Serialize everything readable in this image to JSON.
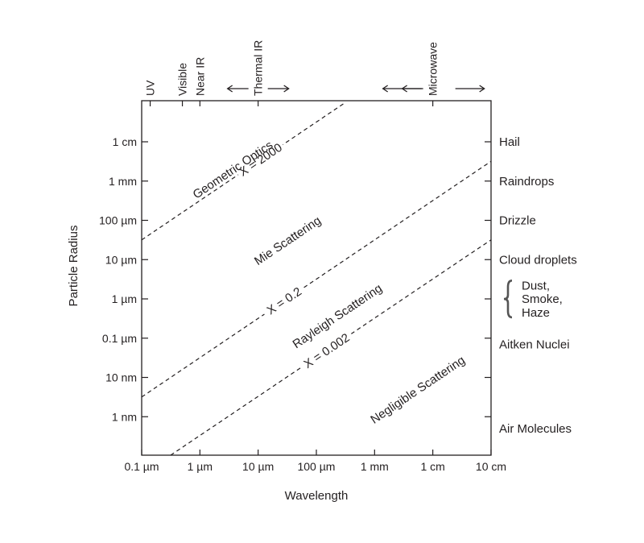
{
  "chart_data": {
    "type": "scatter",
    "x_scale": "log",
    "y_scale": "log",
    "xlabel": "Wavelength",
    "ylabel": "Particle Radius",
    "xlim_m": [
      1e-07,
      0.1
    ],
    "ylim_m": [
      1e-10,
      0.1
    ],
    "grid": false,
    "x_ticks": [
      {
        "value": 1e-07,
        "label": "0.1 µm"
      },
      {
        "value": 1e-06,
        "label": "1 µm"
      },
      {
        "value": 1e-05,
        "label": "10 µm"
      },
      {
        "value": 0.0001,
        "label": "100 µm"
      },
      {
        "value": 0.001,
        "label": "1 mm"
      },
      {
        "value": 0.01,
        "label": "1 cm"
      },
      {
        "value": 0.1,
        "label": "10 cm"
      }
    ],
    "y_ticks": [
      {
        "value": 1e-09,
        "label": "1 nm"
      },
      {
        "value": 1e-08,
        "label": "10 nm"
      },
      {
        "value": 1e-07,
        "label": "0.1  µm"
      },
      {
        "value": 1e-06,
        "label": "1 µm"
      },
      {
        "value": 1e-05,
        "label": "10 µm"
      },
      {
        "value": 0.0001,
        "label": "100 µm"
      },
      {
        "value": 0.001,
        "label": "1 mm"
      },
      {
        "value": 0.01,
        "label": "1 cm"
      }
    ],
    "size_parameter_lines": [
      {
        "x_param": 2000,
        "label": "X = 2000"
      },
      {
        "x_param": 0.2,
        "label": "X = 0.2"
      },
      {
        "x_param": 0.002,
        "label": "X = 0.002"
      }
    ],
    "regions": [
      {
        "label": "Geometric Optics",
        "x": 4e-06,
        "y": 0.0016
      },
      {
        "label": "Mie Scattering",
        "x": 3.5e-05,
        "y": 2.5e-05
      },
      {
        "label": "Rayleigh Scattering",
        "x": 0.00025,
        "y": 3e-07
      },
      {
        "label": "Negligible Scattering",
        "x": 0.006,
        "y": 4e-09
      }
    ],
    "spectral_bands": [
      {
        "label": "UV",
        "x": 1.4e-07
      },
      {
        "label": "Visible",
        "x": 5e-07
      },
      {
        "label": "Near IR",
        "x": 1e-06
      },
      {
        "label": "Thermal IR",
        "x": 1e-05,
        "arrows": true
      },
      {
        "label": "Microwave",
        "x": 0.01,
        "arrows": true
      }
    ],
    "particle_types": [
      {
        "label": "Hail",
        "y": 0.01,
        "ticked": true
      },
      {
        "label": "Raindrops",
        "y": 0.001,
        "ticked": true
      },
      {
        "label": "Drizzle",
        "y": 0.0001,
        "ticked": true
      },
      {
        "label": "Cloud droplets",
        "y": 1e-05,
        "ticked": true
      },
      {
        "label": "Dust,",
        "y": 2.2e-06,
        "ticked": false,
        "bracket": true
      },
      {
        "label": "Smoke,",
        "y": 1e-06,
        "ticked": false
      },
      {
        "label": "Haze",
        "y": 4.5e-07,
        "ticked": false
      },
      {
        "label": "Aitken Nuclei",
        "y": 7e-08,
        "ticked": false
      },
      {
        "label": "Air Molecules",
        "y": 5e-10,
        "ticked": false
      }
    ],
    "right_axis_ticks": [
      0.01,
      0.001,
      0.0001,
      1e-05,
      1e-06,
      1e-07,
      1e-08,
      1e-09
    ]
  }
}
